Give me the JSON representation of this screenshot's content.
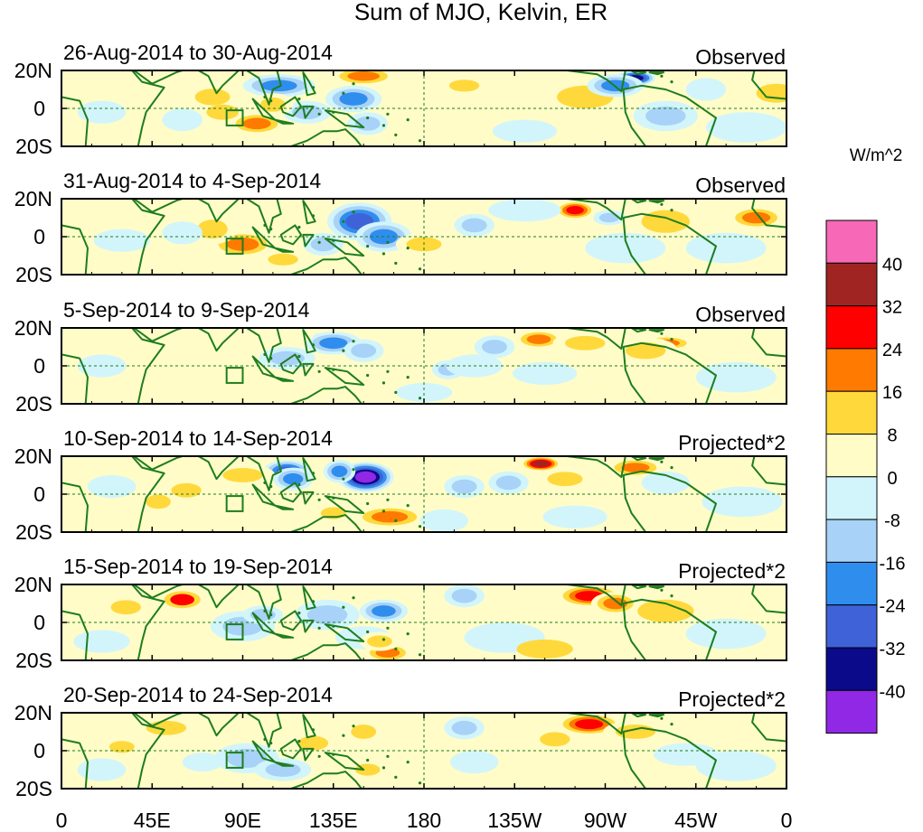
{
  "chart_data": {
    "type": "heatmap",
    "title": "Sum of MJO, Kelvin, ER",
    "colorbar": {
      "unit_label": "W/m^2",
      "tick_labels": [
        "40",
        "32",
        "24",
        "16",
        "8",
        "0",
        "-8",
        "-16",
        "-24",
        "-32",
        "-40"
      ],
      "colors_top_to_bottom": [
        "#f768b6",
        "#a02422",
        "#ff0000",
        "#ff7a00",
        "#ffd93b",
        "#fffcc8",
        "#d2f5fb",
        "#a8d2f7",
        "#2f8eed",
        "#3f62d8",
        "#0a0a8a",
        "#9028e6"
      ]
    },
    "x_tick_labels": [
      "0",
      "45E",
      "90E",
      "135E",
      "180",
      "135W",
      "90W",
      "45W",
      "0"
    ],
    "y_tick_labels": [
      "20N",
      "0",
      "20S"
    ],
    "panels": [
      {
        "period": "26-Aug-2014 to 30-Aug-2014",
        "label": "Observed",
        "blobs": [
          [
            108,
            12,
            18,
            6,
            -22
          ],
          [
            145,
            5,
            14,
            7,
            -20
          ],
          [
            122,
            -2,
            12,
            6,
            -14
          ],
          [
            152,
            -8,
            10,
            6,
            -10
          ],
          [
            75,
            6,
            14,
            7,
            12
          ],
          [
            105,
            2,
            10,
            6,
            14
          ],
          [
            97,
            -8,
            14,
            6,
            18
          ],
          [
            60,
            -6,
            10,
            6,
            -6
          ],
          [
            150,
            17,
            16,
            5,
            22
          ],
          [
            80,
            -2,
            8,
            4,
            8
          ],
          [
            200,
            12,
            12,
            5,
            10
          ],
          [
            260,
            6,
            14,
            6,
            8
          ],
          [
            285,
            16,
            10,
            4,
            -38
          ],
          [
            275,
            12,
            14,
            6,
            -18
          ],
          [
            300,
            -4,
            16,
            8,
            -10
          ],
          [
            340,
            -10,
            20,
            8,
            -6
          ],
          [
            320,
            10,
            10,
            6,
            -8
          ],
          [
            355,
            8,
            10,
            5,
            8
          ],
          [
            230,
            -12,
            16,
            6,
            -4
          ],
          [
            20,
            -2,
            12,
            6,
            -4
          ]
        ]
      },
      {
        "period": "31-Aug-2014 to 4-Sep-2014",
        "label": "Observed",
        "blobs": [
          [
            148,
            8,
            16,
            10,
            -30
          ],
          [
            160,
            0,
            14,
            8,
            -22
          ],
          [
            130,
            -4,
            10,
            6,
            -14
          ],
          [
            90,
            -4,
            16,
            7,
            22
          ],
          [
            75,
            4,
            12,
            8,
            10
          ],
          [
            60,
            2,
            10,
            6,
            -8
          ],
          [
            180,
            -4,
            14,
            6,
            10
          ],
          [
            205,
            6,
            10,
            6,
            -10
          ],
          [
            255,
            14,
            10,
            5,
            26
          ],
          [
            272,
            10,
            8,
            4,
            -10
          ],
          [
            300,
            8,
            12,
            6,
            8
          ],
          [
            345,
            10,
            14,
            6,
            18
          ],
          [
            330,
            -6,
            20,
            8,
            -6
          ],
          [
            280,
            -6,
            20,
            8,
            -4
          ],
          [
            230,
            14,
            18,
            6,
            -6
          ],
          [
            30,
            -2,
            14,
            6,
            -6
          ],
          [
            110,
            -12,
            12,
            5,
            10
          ],
          [
            35,
            14,
            12,
            5,
            6
          ]
        ]
      },
      {
        "period": "5-Sep-2014 to 9-Sep-2014",
        "label": "Observed",
        "blobs": [
          [
            135,
            12,
            14,
            6,
            -22
          ],
          [
            150,
            8,
            10,
            6,
            -14
          ],
          [
            112,
            4,
            14,
            6,
            -10
          ],
          [
            192,
            -2,
            8,
            5,
            -14
          ],
          [
            215,
            10,
            10,
            6,
            -12
          ],
          [
            205,
            0,
            14,
            6,
            -8
          ],
          [
            237,
            14,
            12,
            5,
            22
          ],
          [
            260,
            12,
            16,
            6,
            14
          ],
          [
            300,
            12,
            14,
            4,
            18
          ],
          [
            290,
            8,
            16,
            7,
            12
          ],
          [
            240,
            -4,
            16,
            6,
            -6
          ],
          [
            335,
            -6,
            20,
            8,
            -6
          ],
          [
            60,
            2,
            14,
            6,
            6
          ],
          [
            20,
            0,
            12,
            6,
            -6
          ],
          [
            100,
            -10,
            16,
            6,
            4
          ],
          [
            180,
            -14,
            14,
            5,
            -6
          ],
          [
            115,
            16,
            10,
            4,
            6
          ]
        ]
      },
      {
        "period": "10-Sep-2014 to 14-Sep-2014",
        "label": "Projected*2",
        "blobs": [
          [
            151,
            9,
            14,
            8,
            -44
          ],
          [
            138,
            12,
            8,
            6,
            -20
          ],
          [
            112,
            12,
            12,
            6,
            -30
          ],
          [
            115,
            8,
            10,
            6,
            -22
          ],
          [
            163,
            -12,
            18,
            6,
            18
          ],
          [
            135,
            -10,
            10,
            5,
            10
          ],
          [
            90,
            10,
            16,
            6,
            14
          ],
          [
            62,
            2,
            12,
            6,
            14
          ],
          [
            48,
            -4,
            10,
            6,
            10
          ],
          [
            200,
            4,
            10,
            6,
            -12
          ],
          [
            222,
            6,
            10,
            6,
            -10
          ],
          [
            238,
            16,
            10,
            4,
            38
          ],
          [
            250,
            8,
            14,
            6,
            12
          ],
          [
            285,
            14,
            14,
            5,
            22
          ],
          [
            300,
            6,
            12,
            6,
            -6
          ],
          [
            338,
            -4,
            20,
            8,
            -6
          ],
          [
            25,
            4,
            12,
            6,
            -6
          ],
          [
            190,
            -14,
            12,
            6,
            -6
          ],
          [
            255,
            -12,
            16,
            6,
            -6
          ]
        ]
      },
      {
        "period": "15-Sep-2014 to 19-Sep-2014",
        "label": "Projected*2",
        "blobs": [
          [
            60,
            12,
            12,
            6,
            24
          ],
          [
            32,
            8,
            12,
            6,
            10
          ],
          [
            132,
            4,
            16,
            8,
            -16
          ],
          [
            160,
            6,
            12,
            6,
            -18
          ],
          [
            150,
            -8,
            14,
            6,
            -8
          ],
          [
            90,
            -2,
            16,
            8,
            -12
          ],
          [
            100,
            4,
            10,
            5,
            -16
          ],
          [
            162,
            -16,
            12,
            5,
            18
          ],
          [
            158,
            -10,
            10,
            5,
            10
          ],
          [
            200,
            14,
            10,
            6,
            -10
          ],
          [
            262,
            14,
            16,
            6,
            26
          ],
          [
            275,
            10,
            12,
            6,
            22
          ],
          [
            300,
            6,
            14,
            6,
            8
          ],
          [
            220,
            -8,
            20,
            8,
            -6
          ],
          [
            330,
            -6,
            20,
            8,
            -6
          ],
          [
            240,
            -14,
            14,
            5,
            8
          ],
          [
            20,
            -10,
            14,
            6,
            -6
          ]
        ]
      },
      {
        "period": "20-Sep-2014 to 24-Sep-2014",
        "label": "Projected*2",
        "blobs": [
          [
            52,
            12,
            16,
            6,
            14
          ],
          [
            30,
            2,
            10,
            5,
            12
          ],
          [
            92,
            -4,
            16,
            8,
            -14
          ],
          [
            110,
            -10,
            14,
            6,
            -10
          ],
          [
            70,
            -6,
            10,
            5,
            -6
          ],
          [
            152,
            -10,
            10,
            5,
            14
          ],
          [
            125,
            4,
            12,
            6,
            12
          ],
          [
            150,
            10,
            10,
            6,
            10
          ],
          [
            200,
            12,
            10,
            6,
            -10
          ],
          [
            262,
            14,
            16,
            6,
            30
          ],
          [
            285,
            10,
            16,
            6,
            14
          ],
          [
            245,
            6,
            12,
            6,
            10
          ],
          [
            310,
            -2,
            16,
            6,
            -6
          ],
          [
            205,
            -6,
            12,
            6,
            -8
          ],
          [
            335,
            -8,
            20,
            8,
            -6
          ],
          [
            20,
            -10,
            12,
            6,
            -6
          ]
        ]
      }
    ]
  }
}
